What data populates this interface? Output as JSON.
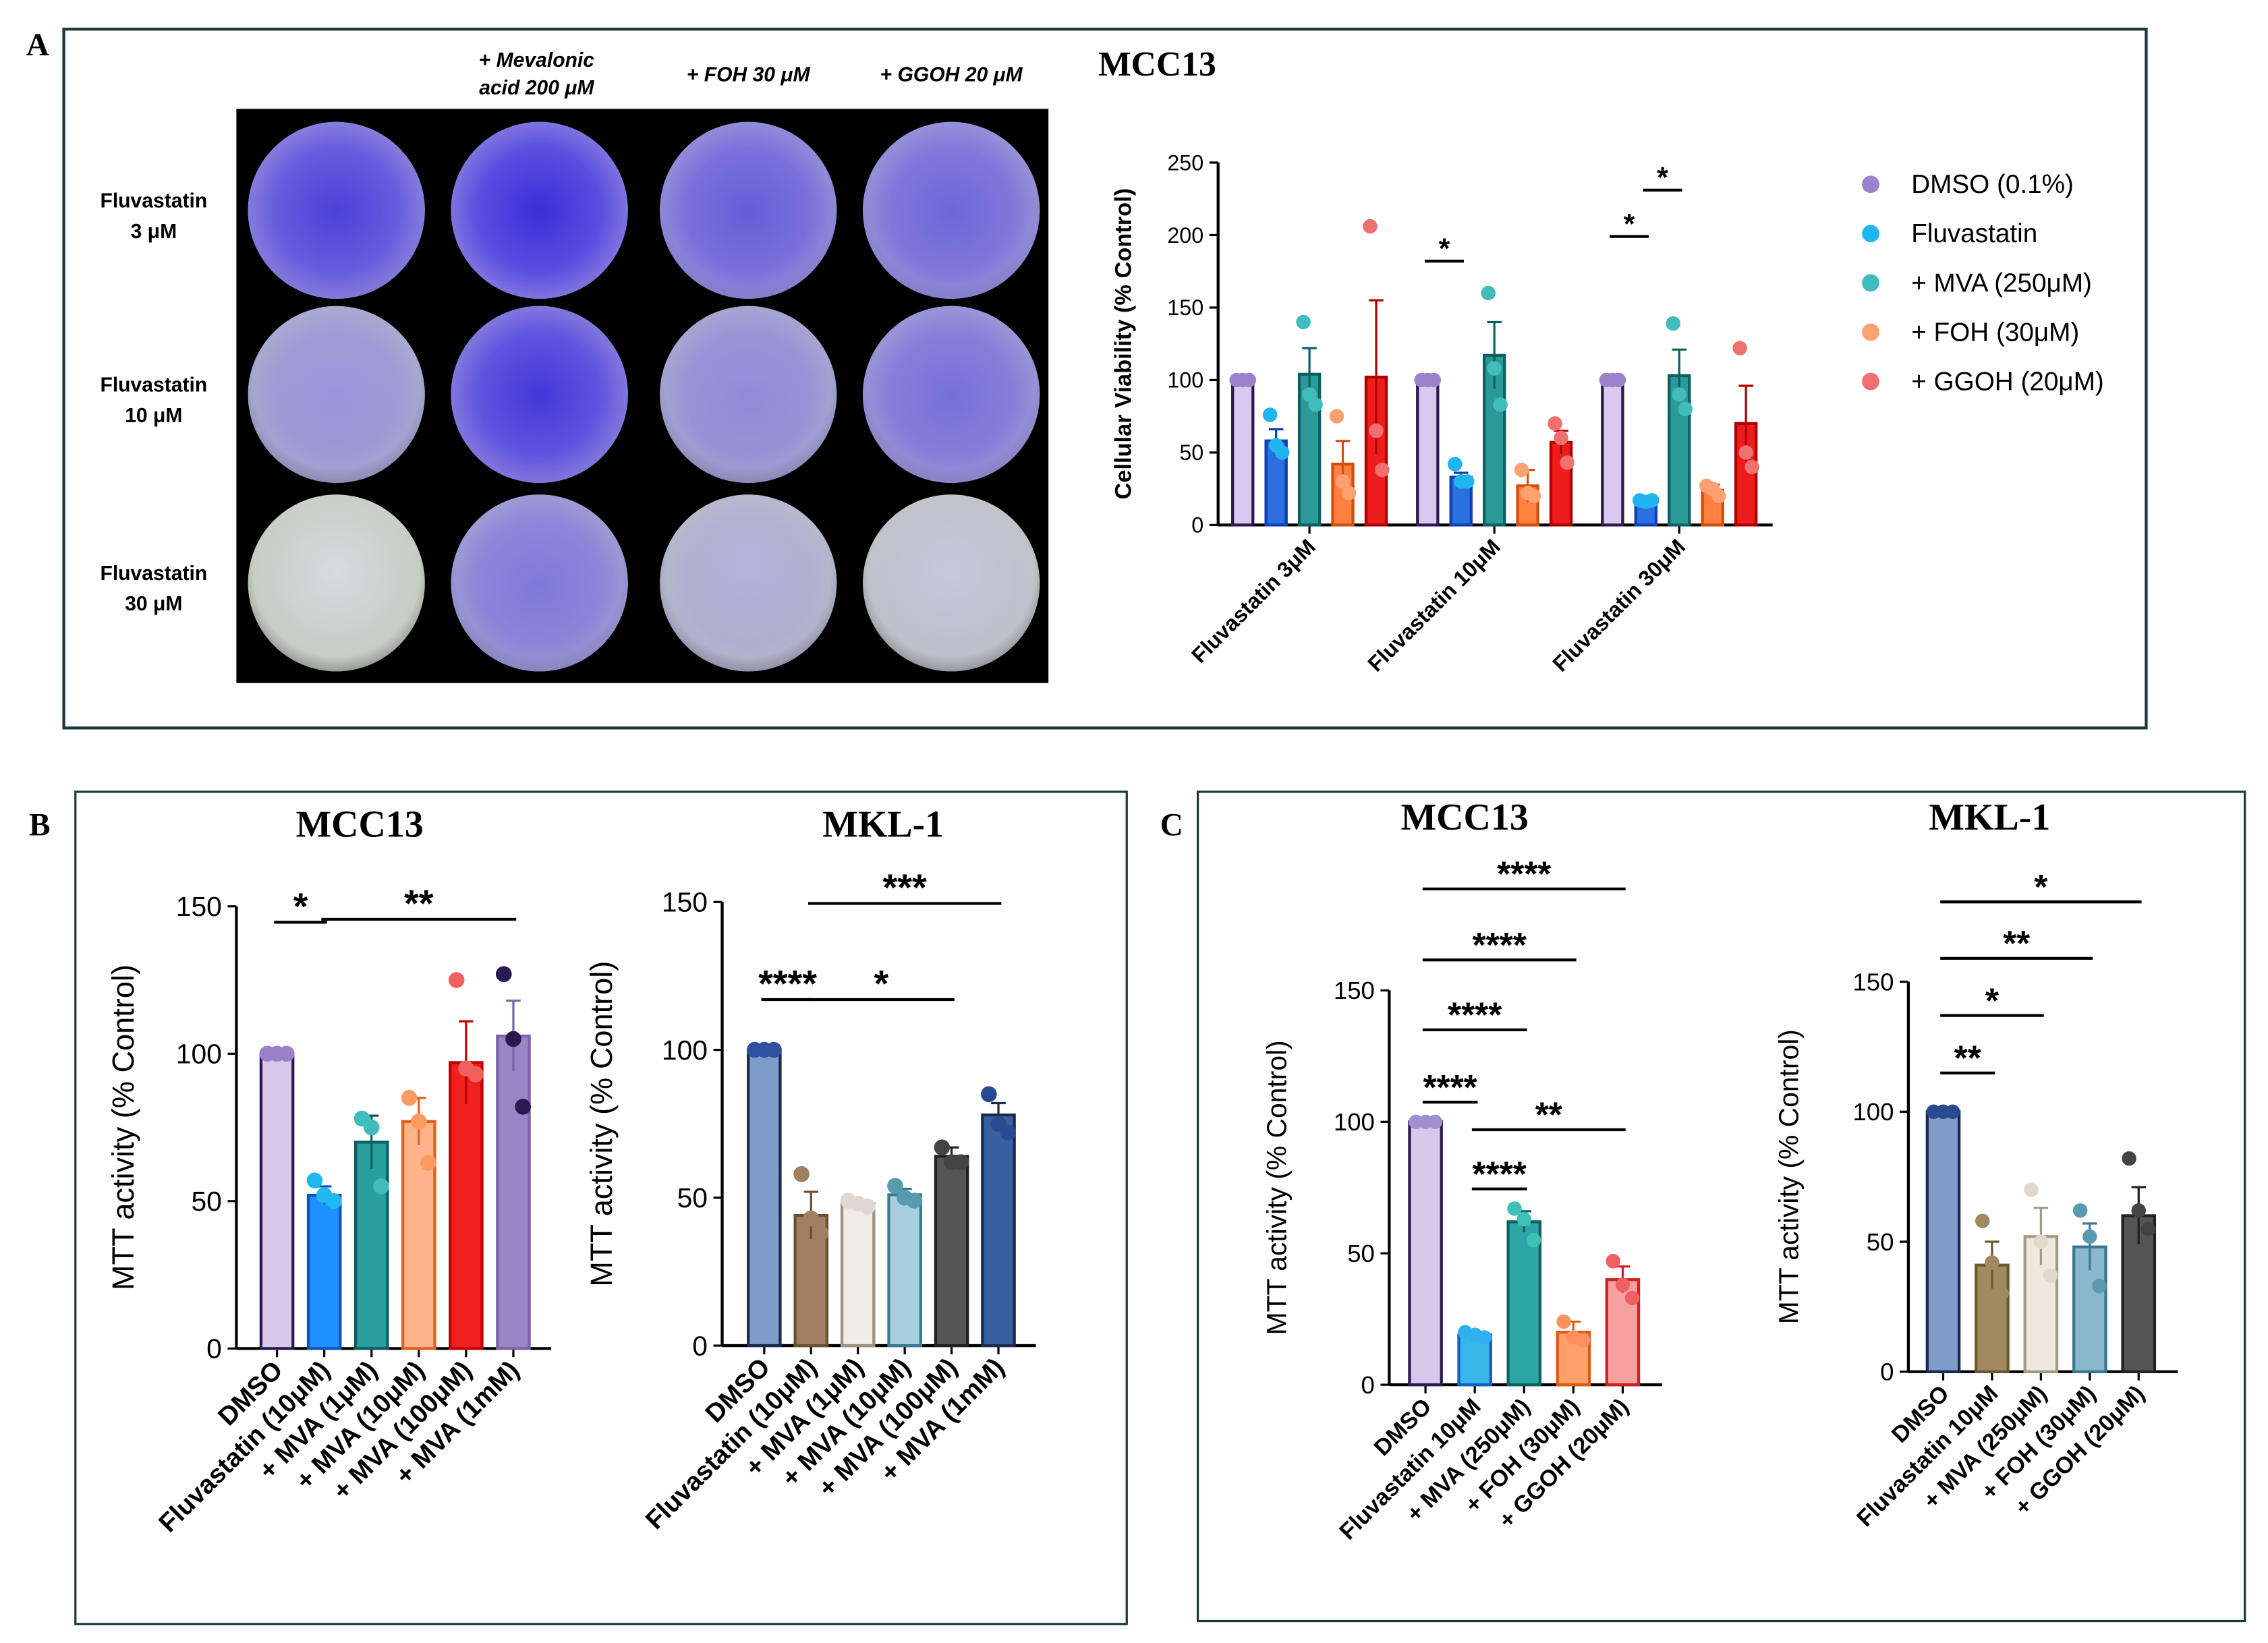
{
  "panels": [
    {
      "label": "A"
    },
    {
      "label": "B"
    },
    {
      "label": "C"
    }
  ],
  "plate": {
    "column_headers": [
      [
        "+ Mevalonic",
        "acid 200 μM"
      ],
      [
        "+ FOH 30 μM"
      ],
      [
        "+ GGOH 20 μM"
      ]
    ],
    "row_labels": [
      [
        "Fluvastatin",
        "3 μM"
      ],
      [
        "Fluvastatin",
        "10 μM"
      ],
      [
        "Fluvastatin",
        "30 μM"
      ]
    ]
  },
  "chart_data": [
    {
      "type": "bar",
      "title": "MCC13",
      "y_label": "Cellular Viability (% Control)",
      "categories": [
        "Fluvastatin 3μM",
        "Fluvastatin 10μM",
        "Fluvastatin 30μM"
      ],
      "ylim": [
        0,
        250
      ],
      "yticks": [
        0,
        50,
        100,
        150,
        200,
        250
      ],
      "series": [
        {
          "name": "DMSO (0.1%)",
          "color": "#d9c9ee",
          "edge_color": "#2a1a50",
          "point_color": "#9a82cc",
          "values": [
            100,
            100,
            100
          ],
          "errors": [
            0,
            0,
            0
          ],
          "points": [
            [
              100,
              100,
              100
            ],
            [
              100,
              100,
              100
            ],
            [
              100,
              100,
              100
            ]
          ]
        },
        {
          "name": "Fluvastatin",
          "color": "#2b6fe0",
          "edge_color": "#1040b0",
          "point_color": "#1fb5f0",
          "values": [
            58,
            33,
            17
          ],
          "errors": [
            8,
            3,
            1
          ],
          "points": [
            [
              76,
              55,
              50
            ],
            [
              42,
              30,
              30
            ],
            [
              17,
              16,
              17
            ]
          ]
        },
        {
          "name": "+ MVA (250μM)",
          "color": "#2a9a98",
          "edge_color": "#0d5f60",
          "point_color": "#40bcbc",
          "values": [
            104,
            117,
            103
          ],
          "errors": [
            18,
            23,
            18
          ],
          "points": [
            [
              140,
              90,
              83
            ],
            [
              160,
              108,
              83
            ],
            [
              139,
              90,
              80
            ]
          ]
        },
        {
          "name": "+ FOH (30μM)",
          "color": "#ff8040",
          "edge_color": "#d05010",
          "point_color": "#ffa070",
          "values": [
            42,
            27,
            24
          ],
          "errors": [
            16,
            11,
            4
          ],
          "points": [
            [
              75,
              30,
              22
            ],
            [
              38,
              22,
              20
            ],
            [
              27,
              25,
              20
            ]
          ]
        },
        {
          "name": "+ GGOH (20μM)",
          "color": "#ee1c1c",
          "edge_color": "#b00000",
          "point_color": "#f07070",
          "values": [
            102,
            57,
            70
          ],
          "errors": [
            53,
            8,
            26
          ],
          "points": [
            [
              206,
              65,
              38
            ],
            [
              70,
              60,
              43
            ],
            [
              122,
              50,
              40
            ]
          ]
        }
      ],
      "significance": [
        {
          "label": "*",
          "from": [
            1,
            0
          ],
          "to": [
            1,
            1
          ],
          "y": 182
        },
        {
          "label": "*",
          "from": [
            2,
            0
          ],
          "to": [
            2,
            1
          ],
          "y": 199
        },
        {
          "label": "*",
          "from": [
            2,
            1
          ],
          "to": [
            2,
            2
          ],
          "y": 231
        }
      ]
    },
    {
      "type": "bar",
      "title": "MCC13",
      "y_label": "MTT activity (% Control)",
      "categories": [
        "DMSO",
        "Fluvastatin (10μM)",
        "+ MVA (1μM)",
        "+ MVA (10μM)",
        "+ MVA (100μM)",
        "+ MVA (1mM)"
      ],
      "ylim": [
        0,
        150
      ],
      "yticks": [
        0,
        50,
        100,
        150
      ],
      "values": [
        100,
        52,
        70,
        77,
        97,
        106
      ],
      "errors": [
        0,
        3,
        9,
        8,
        14,
        12
      ],
      "points": [
        [
          100,
          100,
          100
        ],
        [
          57,
          52,
          50
        ],
        [
          78,
          75,
          55
        ],
        [
          85,
          77,
          63
        ],
        [
          125,
          95,
          93
        ],
        [
          127,
          105,
          82
        ]
      ],
      "colors": [
        "#d8c8ec",
        "#1e90ff",
        "#2a9d9d",
        "#ffb38a",
        "#ee2020",
        "#9a86c6"
      ],
      "edge_colors": [
        "#2a1a50",
        "#1050c0",
        "#0d5f60",
        "#e06020",
        "#c00000",
        "#7a66a8"
      ],
      "point_colors": [
        "#9a80c8",
        "#20b8f0",
        "#40bcbc",
        "#ff9a60",
        "#f06060",
        "#2a1a50"
      ],
      "significance": [
        {
          "label": "*",
          "from": 0,
          "to": 1,
          "y": 144.6
        },
        {
          "label": "**",
          "from": 1,
          "to": 5,
          "y": 145.6
        }
      ]
    },
    {
      "type": "bar",
      "title": "MKL-1",
      "y_label": "MTT activity (% Control)",
      "categories": [
        "DMSO",
        "Fluvastatin (10μM)",
        "+ MVA (1μM)",
        "+ MVA (10μM)",
        "+ MVA (100μM)",
        "+ MVA (1mM)"
      ],
      "ylim": [
        0,
        150
      ],
      "yticks": [
        0,
        50,
        100,
        150
      ],
      "values": [
        100,
        44,
        48,
        51,
        64,
        78
      ],
      "errors": [
        0,
        8,
        1,
        2,
        3,
        4
      ],
      "points": [
        [
          100,
          100,
          100
        ],
        [
          58,
          43,
          38
        ],
        [
          49,
          48,
          47
        ],
        [
          54,
          50,
          49
        ],
        [
          67,
          62,
          62
        ],
        [
          85,
          75,
          72
        ]
      ],
      "colors": [
        "#7f9cc9",
        "#a08060",
        "#f0ebe4",
        "#a8d0dc",
        "#555555",
        "#3a5fa0"
      ],
      "edge_colors": [
        "#1a2a50",
        "#6a5030",
        "#a09080",
        "#3a7a90",
        "#222222",
        "#1a2a50"
      ],
      "point_colors": [
        "#3050a0",
        "#a08060",
        "#e0d8d0",
        "#5a9ab0",
        "#444444",
        "#2a4a90"
      ],
      "significance": [
        {
          "label": "****",
          "from": 0,
          "to": 1,
          "y": 117
        },
        {
          "label": "*",
          "from": 1,
          "to": 4,
          "y": 117
        },
        {
          "label": "***",
          "from": 1,
          "to": 5,
          "y": 149.5
        }
      ]
    },
    {
      "type": "bar",
      "title": "MCC13",
      "y_label": "MTT activity (% Control)",
      "categories": [
        "DMSO",
        "Fluvastatin 10μM",
        "+ MVA (250μM)",
        "+ FOH (30μM)",
        "+ GGOH (20μM)"
      ],
      "ylim": [
        0,
        150
      ],
      "yticks": [
        0,
        50,
        100,
        150
      ],
      "values": [
        100,
        19,
        62,
        20,
        40
      ],
      "errors": [
        0,
        1,
        4,
        4,
        5
      ],
      "points": [
        [
          100,
          100,
          100
        ],
        [
          20,
          19,
          18
        ],
        [
          67,
          63,
          55
        ],
        [
          24,
          18,
          17
        ],
        [
          47,
          38,
          33
        ]
      ],
      "colors": [
        "#d8c9ec",
        "#39b5e8",
        "#2ca6a4",
        "#ff9f6a",
        "#f8a0a0"
      ],
      "edge_colors": [
        "#2d1b55",
        "#1060c0",
        "#0d6060",
        "#e05a10",
        "#d02020"
      ],
      "point_colors": [
        "#a090d0",
        "#30b0f0",
        "#40c0b8",
        "#ff9060",
        "#f06060"
      ],
      "significance": [
        {
          "label": "****",
          "from": 0,
          "to": 1,
          "y": 107.5
        },
        {
          "label": "****",
          "from": 0,
          "to": 2,
          "y": 135
        },
        {
          "label": "****",
          "from": 0,
          "to": 3,
          "y": 161.6
        },
        {
          "label": "****",
          "from": 0,
          "to": 4,
          "y": 188.6
        },
        {
          "label": "****",
          "from": 1,
          "to": 2,
          "y": 74.5
        },
        {
          "label": "**",
          "from": 1,
          "to": 4,
          "y": 97
        }
      ]
    },
    {
      "type": "bar",
      "title": "MKL-1",
      "y_label": "MTT activity (% Control)",
      "categories": [
        "DMSO",
        "Fluvastatin 10μM",
        "+ MVA (250μM)",
        "+ FOH (30μM)",
        "+ GGOH (20μM)"
      ],
      "ylim": [
        0,
        150
      ],
      "yticks": [
        0,
        50,
        100,
        150
      ],
      "values": [
        100,
        41,
        52,
        48,
        60
      ],
      "errors": [
        0,
        9,
        11,
        9,
        11
      ],
      "points": [
        [
          100,
          100,
          100
        ],
        [
          58,
          42,
          30
        ],
        [
          70,
          50,
          37
        ],
        [
          62,
          52,
          33
        ],
        [
          82,
          62,
          55
        ]
      ],
      "colors": [
        "#7f9cc9",
        "#a08a60",
        "#efe8dc",
        "#8ab8cc",
        "#555555"
      ],
      "edge_colors": [
        "#1a2a50",
        "#6a5a30",
        "#a09a88",
        "#3a7a90",
        "#222222"
      ],
      "point_colors": [
        "#2a4a90",
        "#a08a60",
        "#e0d8c8",
        "#5a9ab0",
        "#444444"
      ],
      "significance": [
        {
          "label": "**",
          "from": 0,
          "to": 1,
          "y": 114.9
        },
        {
          "label": "*",
          "from": 0,
          "to": 2,
          "y": 137
        },
        {
          "label": "**",
          "from": 0,
          "to": 3,
          "y": 159
        },
        {
          "label": "*",
          "from": 0,
          "to": 4,
          "y": 180.7
        }
      ]
    }
  ]
}
